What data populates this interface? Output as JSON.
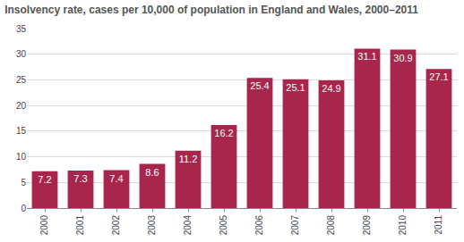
{
  "chart_data": {
    "type": "bar",
    "title": "Insolvency rate, cases per 10,000 of population in England and Wales, 2000–2011",
    "categories": [
      "2000",
      "2001",
      "2002",
      "2003",
      "2004",
      "2005",
      "2006",
      "2007",
      "2008",
      "2009",
      "2010",
      "2011"
    ],
    "values": [
      7.2,
      7.3,
      7.4,
      8.6,
      11.2,
      16.2,
      25.4,
      25.1,
      24.9,
      31.1,
      30.9,
      27.1
    ],
    "color": "#a8264c",
    "ylim": [
      0,
      35
    ],
    "yticks": [
      0,
      5,
      10,
      15,
      20,
      25,
      30,
      35
    ],
    "grid": true,
    "data_labels": true
  }
}
